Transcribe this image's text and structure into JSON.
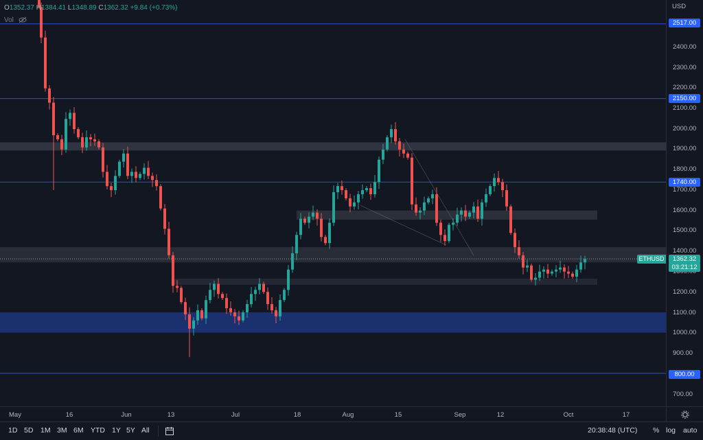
{
  "header": {
    "open_label": "O",
    "open": "1352.37",
    "high_label": "H",
    "high": "1384.41",
    "low_label": "L",
    "low": "1348.89",
    "close_label": "C",
    "close": "1362.32",
    "change": "+9.84 (+0.73%)",
    "volume_label": "Vol"
  },
  "price_axis": {
    "currency": "USD",
    "ticks": [
      "2400.00",
      "2300.00",
      "2200.00",
      "2100.00",
      "2000.00",
      "1900.00",
      "1800.00",
      "1700.00",
      "1600.00",
      "1500.00",
      "1400.00",
      "1300.00",
      "1200.00",
      "1100.00",
      "1000.00",
      "900.00",
      "700.00"
    ],
    "levels": [
      "2517.00",
      "2150.00",
      "1740.00",
      "800.00"
    ],
    "symbol_tag": "ETHUSD",
    "last_price": "1362.32",
    "countdown": "03:21:12"
  },
  "time_axis": {
    "labels": [
      "May",
      "16",
      "Jun",
      "13",
      "Jul",
      "18",
      "Aug",
      "15",
      "Sep",
      "12",
      "Oct",
      "17"
    ]
  },
  "toolbar": {
    "ranges": [
      "1D",
      "5D",
      "1M",
      "3M",
      "6M",
      "YTD",
      "1Y",
      "5Y",
      "All"
    ],
    "clock": "20:38:48 (UTC)",
    "percent": "%",
    "log": "log",
    "auto": "auto"
  },
  "colors": {
    "up": "#26a69a",
    "down": "#ef5350",
    "level_line": "#2962ff",
    "zone": "#363a45",
    "support_zone": "#1e3a8a"
  }
}
